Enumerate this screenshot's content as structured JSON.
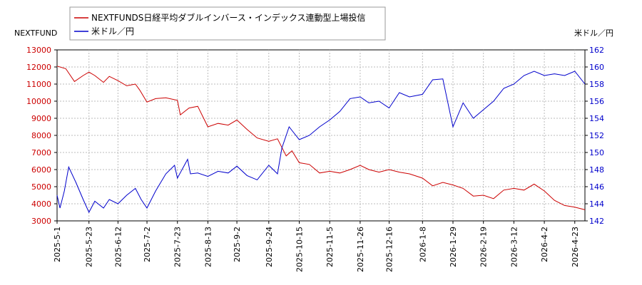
{
  "chart_data": {
    "type": "line",
    "legend": {
      "placement": "top-left",
      "entries": [
        {
          "label": "NEXTFUNDS日経平均ダブルインバース・インデックス連動型上場投信",
          "color": "#cc0000"
        },
        {
          "label": "米ドル／円",
          "color": "#0000cc"
        }
      ]
    },
    "left_axis": {
      "label": "NEXTFUND",
      "ylim": [
        3000,
        13000
      ],
      "ticks": [
        "3000",
        "4000",
        "5000",
        "6000",
        "7000",
        "8000",
        "9000",
        "10000",
        "11000",
        "12000",
        "13000"
      ],
      "tick_color": "#cc0000"
    },
    "right_axis": {
      "label": "米ドル／円",
      "ylim": [
        142,
        162
      ],
      "ticks": [
        "142",
        "144",
        "146",
        "148",
        "150",
        "152",
        "154",
        "156",
        "158",
        "160",
        "162"
      ],
      "tick_color": "#0000cc"
    },
    "x_ticks": [
      "2025-5-1",
      "2025-5-23",
      "2025-6-12",
      "2025-7-2",
      "2025-7-23",
      "2025-8-13",
      "2025-9-2",
      "2025-9-24",
      "2025-10-15",
      "2025-11-5",
      "2025-11-26",
      "2025-12-16",
      "2026-1-8",
      "2026-1-29",
      "2026-2-19",
      "2026-3-12",
      "2026-4-2",
      "2026-4-23"
    ],
    "grid": true,
    "series": [
      {
        "name": "NEXTFUNDS日経平均ダブルインバース・インデックス連動型上場投信",
        "axis": "left",
        "color": "#cc0000",
        "points": [
          [
            "2025-5-1",
            12050
          ],
          [
            "2025-5-7",
            11900
          ],
          [
            "2025-5-13",
            11150
          ],
          [
            "2025-5-19",
            11500
          ],
          [
            "2025-5-23",
            11700
          ],
          [
            "2025-5-27",
            11500
          ],
          [
            "2025-6-2",
            11100
          ],
          [
            "2025-6-6",
            11450
          ],
          [
            "2025-6-12",
            11200
          ],
          [
            "2025-6-18",
            10900
          ],
          [
            "2025-6-24",
            11000
          ],
          [
            "2025-6-27",
            10650
          ],
          [
            "2025-7-2",
            9950
          ],
          [
            "2025-7-8",
            10150
          ],
          [
            "2025-7-15",
            10200
          ],
          [
            "2025-7-23",
            10050
          ],
          [
            "2025-7-25",
            9200
          ],
          [
            "2025-7-31",
            9600
          ],
          [
            "2025-8-6",
            9700
          ],
          [
            "2025-8-13",
            8500
          ],
          [
            "2025-8-20",
            8700
          ],
          [
            "2025-8-27",
            8600
          ],
          [
            "2025-9-2",
            8900
          ],
          [
            "2025-9-9",
            8350
          ],
          [
            "2025-9-16",
            7850
          ],
          [
            "2025-9-24",
            7650
          ],
          [
            "2025-9-30",
            7800
          ],
          [
            "2025-10-3",
            7300
          ],
          [
            "2025-10-6",
            6800
          ],
          [
            "2025-10-10",
            7100
          ],
          [
            "2025-10-15",
            6400
          ],
          [
            "2025-10-22",
            6300
          ],
          [
            "2025-10-29",
            5800
          ],
          [
            "2025-11-5",
            5900
          ],
          [
            "2025-11-12",
            5800
          ],
          [
            "2025-11-19",
            6000
          ],
          [
            "2025-11-26",
            6250
          ],
          [
            "2025-12-2",
            6000
          ],
          [
            "2025-12-9",
            5850
          ],
          [
            "2025-12-16",
            6000
          ],
          [
            "2025-12-23",
            5850
          ],
          [
            "2025-12-30",
            5750
          ],
          [
            "2026-1-8",
            5500
          ],
          [
            "2026-1-15",
            5050
          ],
          [
            "2026-1-22",
            5250
          ],
          [
            "2026-1-29",
            5100
          ],
          [
            "2026-2-5",
            4900
          ],
          [
            "2026-2-12",
            4450
          ],
          [
            "2026-2-19",
            4500
          ],
          [
            "2026-2-26",
            4300
          ],
          [
            "2026-3-5",
            4800
          ],
          [
            "2026-3-12",
            4900
          ],
          [
            "2026-3-19",
            4800
          ],
          [
            "2026-3-26",
            5150
          ],
          [
            "2026-4-2",
            4750
          ],
          [
            "2026-4-9",
            4200
          ],
          [
            "2026-4-16",
            3900
          ],
          [
            "2026-4-23",
            3800
          ],
          [
            "2026-4-30",
            3650
          ]
        ]
      },
      {
        "name": "米ドル／円",
        "axis": "right",
        "color": "#0000cc",
        "points": [
          [
            "2025-5-1",
            145.0
          ],
          [
            "2025-5-3",
            143.5
          ],
          [
            "2025-5-6",
            145.5
          ],
          [
            "2025-5-9",
            148.3
          ],
          [
            "2025-5-14",
            146.5
          ],
          [
            "2025-5-19",
            144.5
          ],
          [
            "2025-5-23",
            143.0
          ],
          [
            "2025-5-27",
            144.3
          ],
          [
            "2025-6-2",
            143.5
          ],
          [
            "2025-6-6",
            144.5
          ],
          [
            "2025-6-12",
            144.0
          ],
          [
            "2025-6-18",
            145.0
          ],
          [
            "2025-6-24",
            145.8
          ],
          [
            "2025-6-28",
            144.5
          ],
          [
            "2025-7-2",
            143.5
          ],
          [
            "2025-7-8",
            145.5
          ],
          [
            "2025-7-15",
            147.5
          ],
          [
            "2025-7-21",
            148.5
          ],
          [
            "2025-7-23",
            147.0
          ],
          [
            "2025-7-30",
            149.2
          ],
          [
            "2025-8-1",
            147.5
          ],
          [
            "2025-8-6",
            147.6
          ],
          [
            "2025-8-13",
            147.2
          ],
          [
            "2025-8-20",
            147.8
          ],
          [
            "2025-8-27",
            147.6
          ],
          [
            "2025-9-2",
            148.4
          ],
          [
            "2025-9-9",
            147.3
          ],
          [
            "2025-9-16",
            146.8
          ],
          [
            "2025-9-24",
            148.5
          ],
          [
            "2025-9-30",
            147.5
          ],
          [
            "2025-10-3",
            150.5
          ],
          [
            "2025-10-8",
            153.0
          ],
          [
            "2025-10-15",
            151.5
          ],
          [
            "2025-10-22",
            152.0
          ],
          [
            "2025-10-29",
            153.0
          ],
          [
            "2025-11-5",
            153.8
          ],
          [
            "2025-11-12",
            154.8
          ],
          [
            "2025-11-19",
            156.3
          ],
          [
            "2025-11-26",
            156.5
          ],
          [
            "2025-12-2",
            155.8
          ],
          [
            "2025-12-9",
            156.0
          ],
          [
            "2025-12-16",
            155.2
          ],
          [
            "2025-12-23",
            157.0
          ],
          [
            "2025-12-30",
            156.5
          ],
          [
            "2026-1-8",
            156.8
          ],
          [
            "2026-1-15",
            158.5
          ],
          [
            "2026-1-22",
            158.6
          ],
          [
            "2026-1-29",
            153.0
          ],
          [
            "2026-2-5",
            155.8
          ],
          [
            "2026-2-12",
            154.0
          ],
          [
            "2026-2-19",
            155.0
          ],
          [
            "2026-2-26",
            156.0
          ],
          [
            "2026-3-5",
            157.5
          ],
          [
            "2026-3-12",
            158.0
          ],
          [
            "2026-3-19",
            159.0
          ],
          [
            "2026-3-26",
            159.5
          ],
          [
            "2026-4-2",
            159.0
          ],
          [
            "2026-4-9",
            159.2
          ],
          [
            "2026-4-16",
            159.0
          ],
          [
            "2026-4-23",
            159.5
          ],
          [
            "2026-4-30",
            158.0
          ]
        ]
      }
    ]
  }
}
